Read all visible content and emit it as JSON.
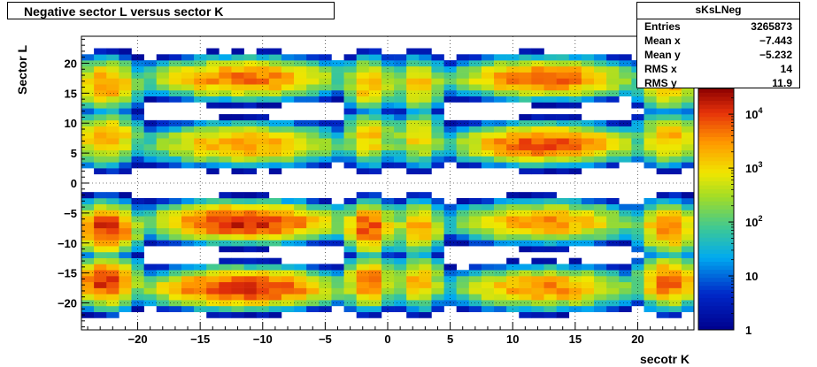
{
  "chart_data": {
    "type": "heatmap",
    "title": "Negative sector L versus sector K",
    "xlabel": "secotr K",
    "ylabel": "Sector L",
    "xlim": [
      -24.5,
      24.5
    ],
    "ylim": [
      -24.5,
      24.5
    ],
    "x_ticks": [
      -20,
      -15,
      -10,
      -5,
      0,
      5,
      10,
      15,
      20
    ],
    "y_ticks": [
      -20,
      -15,
      -10,
      -5,
      0,
      5,
      10,
      15,
      20
    ],
    "x_tick_labels": [
      "−20",
      "−15",
      "−10",
      "−5",
      "0",
      "5",
      "10",
      "15",
      "20"
    ],
    "y_tick_labels": [
      "−20",
      "−15",
      "−10",
      "−5",
      "0",
      "5",
      "10",
      "15",
      "20"
    ],
    "z_scale": "log",
    "zlim": [
      1,
      30000
    ],
    "z_ticks": [
      1,
      10,
      100,
      1000,
      10000
    ],
    "z_tick_labels": [
      {
        "base": "1",
        "exp": ""
      },
      {
        "base": "10",
        "exp": ""
      },
      {
        "base": "10",
        "exp": "2"
      },
      {
        "base": "10",
        "exp": "3"
      },
      {
        "base": "10",
        "exp": "4"
      }
    ],
    "grid": true,
    "regions": [
      {
        "xc": -22.5,
        "yc": -16.5,
        "rx": 3,
        "ry": 4.5,
        "peak": 12000
      },
      {
        "xc": -22.5,
        "yc": -7.5,
        "rx": 3,
        "ry": 4.5,
        "peak": 12000
      },
      {
        "xc": -22.5,
        "yc": 7.5,
        "rx": 3,
        "ry": 4.5,
        "peak": 2500
      },
      {
        "xc": -22.5,
        "yc": 16.5,
        "rx": 3,
        "ry": 4.5,
        "peak": 3500
      },
      {
        "xc": -11.5,
        "yc": -17.5,
        "rx": 8.5,
        "ry": 3.5,
        "peak": 15000
      },
      {
        "xc": -11.5,
        "yc": -6.5,
        "rx": 8.5,
        "ry": 3.5,
        "peak": 15000
      },
      {
        "xc": -11.5,
        "yc": 6.5,
        "rx": 8.5,
        "ry": 3.5,
        "peak": 3000
      },
      {
        "xc": -11.5,
        "yc": 17.5,
        "rx": 8.5,
        "ry": 3.5,
        "peak": 5000
      },
      {
        "xc": -1.5,
        "yc": -16.5,
        "rx": 2.2,
        "ry": 4.5,
        "peak": 6000
      },
      {
        "xc": -1.5,
        "yc": -7.5,
        "rx": 2.2,
        "ry": 4.5,
        "peak": 9000
      },
      {
        "xc": -1.5,
        "yc": 7.5,
        "rx": 2.2,
        "ry": 4.5,
        "peak": 1500
      },
      {
        "xc": -1.5,
        "yc": 16.5,
        "rx": 2.2,
        "ry": 4.5,
        "peak": 2000
      },
      {
        "xc": 2.5,
        "yc": -16.5,
        "rx": 2.2,
        "ry": 4.5,
        "peak": 2000
      },
      {
        "xc": 2.5,
        "yc": -7.5,
        "rx": 2.2,
        "ry": 4.5,
        "peak": 2500
      },
      {
        "xc": 2.5,
        "yc": 7.5,
        "rx": 2.2,
        "ry": 4.5,
        "peak": 1200
      },
      {
        "xc": 2.5,
        "yc": 16.5,
        "rx": 2.2,
        "ry": 4.5,
        "peak": 1500
      },
      {
        "xc": 12.5,
        "yc": -17.5,
        "rx": 8,
        "ry": 3.5,
        "peak": 3500
      },
      {
        "xc": 12.5,
        "yc": -6.5,
        "rx": 8,
        "ry": 3.5,
        "peak": 3000
      },
      {
        "xc": 12.5,
        "yc": 6.5,
        "rx": 8,
        "ry": 3.5,
        "peak": 8000
      },
      {
        "xc": 12.5,
        "yc": 17.5,
        "rx": 8,
        "ry": 3.5,
        "peak": 6000
      },
      {
        "xc": 22.5,
        "yc": -16.5,
        "rx": 2.8,
        "ry": 4.5,
        "peak": 6000
      },
      {
        "xc": 22.5,
        "yc": -7.5,
        "rx": 2.8,
        "ry": 4.5,
        "peak": 4000
      },
      {
        "xc": 22.5,
        "yc": 7.5,
        "rx": 2.8,
        "ry": 4.5,
        "peak": 2000
      },
      {
        "xc": 22.5,
        "yc": 16.5,
        "rx": 2.8,
        "ry": 4.5,
        "peak": 2000
      }
    ]
  },
  "stats": {
    "name": "sKsLNeg",
    "rows": [
      {
        "label": "Entries",
        "value": "3265873"
      },
      {
        "label": "Mean x",
        "value": "−7.443"
      },
      {
        "label": "Mean y",
        "value": "−5.232"
      },
      {
        "label": "RMS x",
        "value": "14"
      },
      {
        "label": "RMS y",
        "value": "11.9"
      }
    ]
  }
}
